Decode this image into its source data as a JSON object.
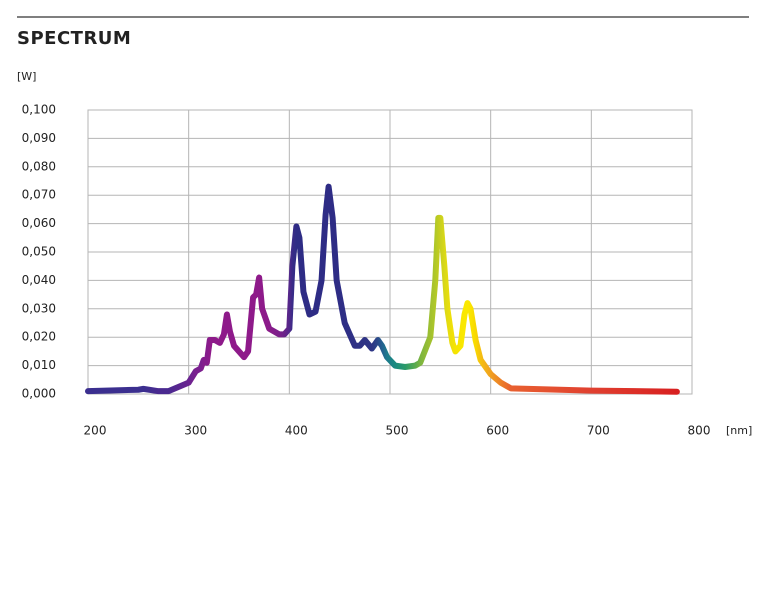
{
  "chart_data": {
    "type": "line",
    "title": "SPECTRUM",
    "ylabel": "[W]",
    "xlabel": "[nm]",
    "xlim": [
      200,
      800
    ],
    "xticks": [
      200,
      300,
      400,
      500,
      600,
      700,
      800
    ],
    "ylim": [
      0,
      0.1
    ],
    "yticks": [
      {
        "value": 0,
        "label": "0,000"
      },
      {
        "value": 0.01,
        "label": "0,010"
      },
      {
        "value": 0.02,
        "label": "0,020"
      },
      {
        "value": 0.03,
        "label": "0,030"
      },
      {
        "value": 0.04,
        "label": "0,040"
      },
      {
        "value": 0.05,
        "label": "0,050"
      },
      {
        "value": 0.06,
        "label": "0,060"
      },
      {
        "value": 0.07,
        "label": "0,070"
      },
      {
        "value": 0.08,
        "label": "0,080"
      },
      {
        "value": 0.09,
        "label": "0,090"
      },
      {
        "value": 0.1,
        "label": "0,100"
      }
    ],
    "grid": true,
    "x": [
      200,
      250,
      255,
      270,
      280,
      300,
      307,
      312,
      315,
      318,
      321,
      326,
      331,
      335,
      338,
      341,
      345,
      355,
      359,
      364,
      367,
      370,
      373,
      380,
      390,
      395,
      400,
      403,
      407,
      410,
      414,
      420,
      426,
      432,
      436,
      439,
      443,
      447,
      455,
      465,
      470,
      475,
      482,
      488,
      492,
      497,
      505,
      515,
      525,
      530,
      540,
      545,
      548,
      550,
      554,
      557,
      562,
      565,
      570,
      574,
      577,
      580,
      585,
      590,
      600,
      610,
      620,
      700,
      785
    ],
    "values": [
      0.001,
      0.0015,
      0.0018,
      0.001,
      0.001,
      0.004,
      0.008,
      0.009,
      0.012,
      0.011,
      0.019,
      0.019,
      0.018,
      0.021,
      0.028,
      0.022,
      0.017,
      0.013,
      0.015,
      0.034,
      0.035,
      0.041,
      0.03,
      0.023,
      0.021,
      0.021,
      0.023,
      0.045,
      0.059,
      0.055,
      0.036,
      0.028,
      0.029,
      0.04,
      0.063,
      0.073,
      0.062,
      0.04,
      0.025,
      0.017,
      0.017,
      0.019,
      0.016,
      0.019,
      0.017,
      0.013,
      0.01,
      0.0095,
      0.01,
      0.011,
      0.02,
      0.04,
      0.062,
      0.062,
      0.045,
      0.03,
      0.018,
      0.015,
      0.017,
      0.028,
      0.032,
      0.03,
      0.019,
      0.012,
      0.007,
      0.004,
      0.002,
      0.0012,
      0.0008
    ],
    "colors": [
      "#3b2f8f",
      "#3b2f8f",
      "#3b2f8f",
      "#4a2a90",
      "#4a2a90",
      "#6a2390",
      "#7a1f8f",
      "#7a1f8f",
      "#851c8c",
      "#851c8c",
      "#8e1a8a",
      "#8e1a8a",
      "#8e1a8a",
      "#8e1a8a",
      "#8e1a8a",
      "#8e1a8a",
      "#8e1a8a",
      "#8e1a8a",
      "#8e1a8a",
      "#8e1a8a",
      "#8e1a8a",
      "#8e1a8a",
      "#8e1a8a",
      "#8a1b8a",
      "#7a1f8a",
      "#6a2389",
      "#52288a",
      "#3a2b88",
      "#2e2c85",
      "#2e2c85",
      "#2e2c85",
      "#2e2c85",
      "#2e2c85",
      "#2e2c85",
      "#2e2c85",
      "#2e2c85",
      "#2e2c85",
      "#2e2c85",
      "#2e2e85",
      "#2e3085",
      "#2e3285",
      "#2e3385",
      "#2e3585",
      "#2a4a8a",
      "#246090",
      "#1d7a8c",
      "#1a8a80",
      "#2a9a6a",
      "#5aaa50",
      "#7ab440",
      "#a0c030",
      "#b0c828",
      "#c0cc20",
      "#c8d020",
      "#d8d818",
      "#e4dc10",
      "#f0e008",
      "#f5e400",
      "#f8e600",
      "#fae800",
      "#fae800",
      "#fae400",
      "#f8d800",
      "#f5c010",
      "#f0a020",
      "#ec8028",
      "#e86030",
      "#e04030",
      "#d82020"
    ]
  }
}
